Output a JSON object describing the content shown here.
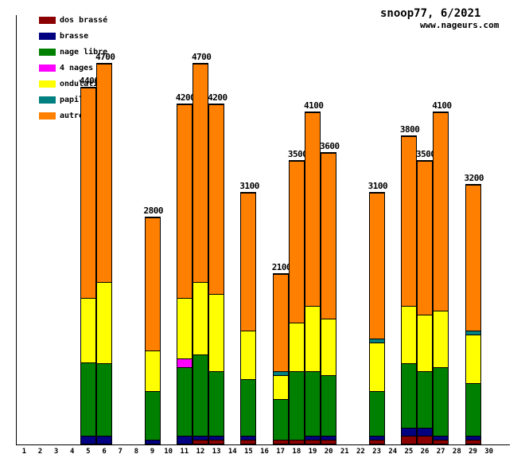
{
  "title": "snoop77, 6/2021",
  "site": "www.nageurs.com",
  "legend": [
    {
      "key": "dos_brasse",
      "label": "dos brassé",
      "color": "#8B0000"
    },
    {
      "key": "brasse",
      "label": "brasse",
      "color": "#000080"
    },
    {
      "key": "nage_libre",
      "label": "nage libre",
      "color": "#008000"
    },
    {
      "key": "quatre_nages",
      "label": "4 nages",
      "color": "#FF00FF"
    },
    {
      "key": "ondulations",
      "label": "ondulations",
      "color": "#FFFF00"
    },
    {
      "key": "papillon",
      "label": "papillon",
      "color": "#008080"
    },
    {
      "key": "autre",
      "label": "autre",
      "color": "#FF8000"
    }
  ],
  "chart_data": {
    "type": "bar",
    "stacked": true,
    "title": "snoop77, 6/2021",
    "xlabel": "",
    "ylabel": "",
    "ylim": [
      0,
      4800
    ],
    "grid": false,
    "legend_position": "top-left",
    "x_tick_labels": [
      "1",
      "2",
      "3",
      "4",
      "5",
      "6",
      "7",
      "8",
      "9",
      "10",
      "11",
      "12",
      "13",
      "14",
      "15",
      "16",
      "17",
      "18",
      "19",
      "20",
      "21",
      "22",
      "23",
      "24",
      "25",
      "26",
      "27",
      "28",
      "29",
      "30"
    ],
    "series_order": [
      "dos_brasse",
      "brasse",
      "nage_libre",
      "quatre_nages",
      "ondulations",
      "papillon",
      "autre"
    ],
    "bars": [
      {
        "day": 5,
        "total": 4400,
        "label": "4400",
        "segments": {
          "brasse": 100,
          "nage_libre": 900,
          "ondulations": 800,
          "autre": 2600
        }
      },
      {
        "day": 6,
        "total": 4700,
        "label": "4700",
        "segments": {
          "brasse": 100,
          "nage_libre": 900,
          "ondulations": 1000,
          "autre": 2700
        }
      },
      {
        "day": 9,
        "total": 2800,
        "label": "2800",
        "segments": {
          "brasse": 50,
          "nage_libre": 600,
          "ondulations": 500,
          "autre": 1650
        }
      },
      {
        "day": 11,
        "total": 4200,
        "label": "4200",
        "segments": {
          "brasse": 100,
          "nage_libre": 850,
          "quatre_nages": 100,
          "ondulations": 750,
          "autre": 2400
        }
      },
      {
        "day": 12,
        "total": 4700,
        "label": "4700",
        "segments": {
          "dos_brasse": 50,
          "brasse": 50,
          "nage_libre": 1000,
          "ondulations": 900,
          "autre": 2700
        }
      },
      {
        "day": 13,
        "total": 4200,
        "label": "4200",
        "segments": {
          "dos_brasse": 50,
          "brasse": 50,
          "nage_libre": 800,
          "ondulations": 950,
          "autre": 2350
        }
      },
      {
        "day": 15,
        "total": 3100,
        "label": "3100",
        "segments": {
          "dos_brasse": 50,
          "brasse": 50,
          "nage_libre": 700,
          "ondulations": 600,
          "autre": 1700
        }
      },
      {
        "day": 17,
        "total": 2100,
        "label": "2100",
        "segments": {
          "dos_brasse": 50,
          "nage_libre": 500,
          "ondulations": 300,
          "papillon": 50,
          "autre": 1200
        }
      },
      {
        "day": 18,
        "total": 3500,
        "label": "3500",
        "segments": {
          "dos_brasse": 50,
          "nage_libre": 850,
          "ondulations": 600,
          "autre": 2000
        }
      },
      {
        "day": 19,
        "total": 4100,
        "label": "4100",
        "segments": {
          "dos_brasse": 50,
          "brasse": 50,
          "nage_libre": 800,
          "ondulations": 800,
          "autre": 2400
        }
      },
      {
        "day": 20,
        "total": 3600,
        "label": "3600",
        "segments": {
          "dos_brasse": 50,
          "brasse": 50,
          "nage_libre": 750,
          "ondulations": 700,
          "autre": 2050
        }
      },
      {
        "day": 23,
        "total": 3100,
        "label": "3100",
        "segments": {
          "dos_brasse": 50,
          "brasse": 50,
          "nage_libre": 550,
          "ondulations": 600,
          "papillon": 50,
          "autre": 1800
        }
      },
      {
        "day": 25,
        "total": 3800,
        "label": "3800",
        "segments": {
          "dos_brasse": 100,
          "brasse": 100,
          "nage_libre": 800,
          "ondulations": 700,
          "autre": 2100
        }
      },
      {
        "day": 26,
        "total": 3500,
        "label": "3500",
        "segments": {
          "dos_brasse": 100,
          "brasse": 100,
          "nage_libre": 700,
          "ondulations": 700,
          "autre": 1900
        }
      },
      {
        "day": 27,
        "total": 4100,
        "label": "4100",
        "segments": {
          "dos_brasse": 50,
          "brasse": 50,
          "nage_libre": 850,
          "ondulations": 700,
          "autre": 2450
        }
      },
      {
        "day": 29,
        "total": 3200,
        "label": "3200",
        "segments": {
          "dos_brasse": 50,
          "brasse": 50,
          "nage_libre": 650,
          "ondulations": 600,
          "papillon": 50,
          "autre": 1800
        }
      }
    ]
  }
}
